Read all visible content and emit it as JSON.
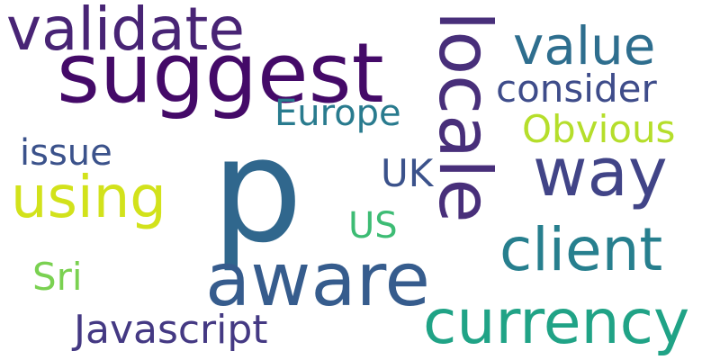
{
  "words": [
    {
      "text": "p",
      "color": "#30678d"
    },
    {
      "text": "suggest",
      "color": "#440a68"
    },
    {
      "text": "validate",
      "color": "#482475"
    },
    {
      "text": "locale",
      "color": "#482f7a"
    },
    {
      "text": "aware",
      "color": "#365c8d"
    },
    {
      "text": "way",
      "color": "#414487"
    },
    {
      "text": "value",
      "color": "#2e6e8e"
    },
    {
      "text": "currency",
      "color": "#20a386"
    },
    {
      "text": "client",
      "color": "#277f8e"
    },
    {
      "text": "using",
      "color": "#d2e21b"
    },
    {
      "text": "consider",
      "color": "#3e4c8a"
    },
    {
      "text": "Obvious",
      "color": "#b5de2b"
    },
    {
      "text": "Europe",
      "color": "#297b8e"
    },
    {
      "text": "Javascript",
      "color": "#443983"
    },
    {
      "text": "issue",
      "color": "#3b528b"
    },
    {
      "text": "UK",
      "color": "#3b528b"
    },
    {
      "text": "US",
      "color": "#3dbc74"
    },
    {
      "text": "Sri",
      "color": "#7ad151"
    }
  ]
}
